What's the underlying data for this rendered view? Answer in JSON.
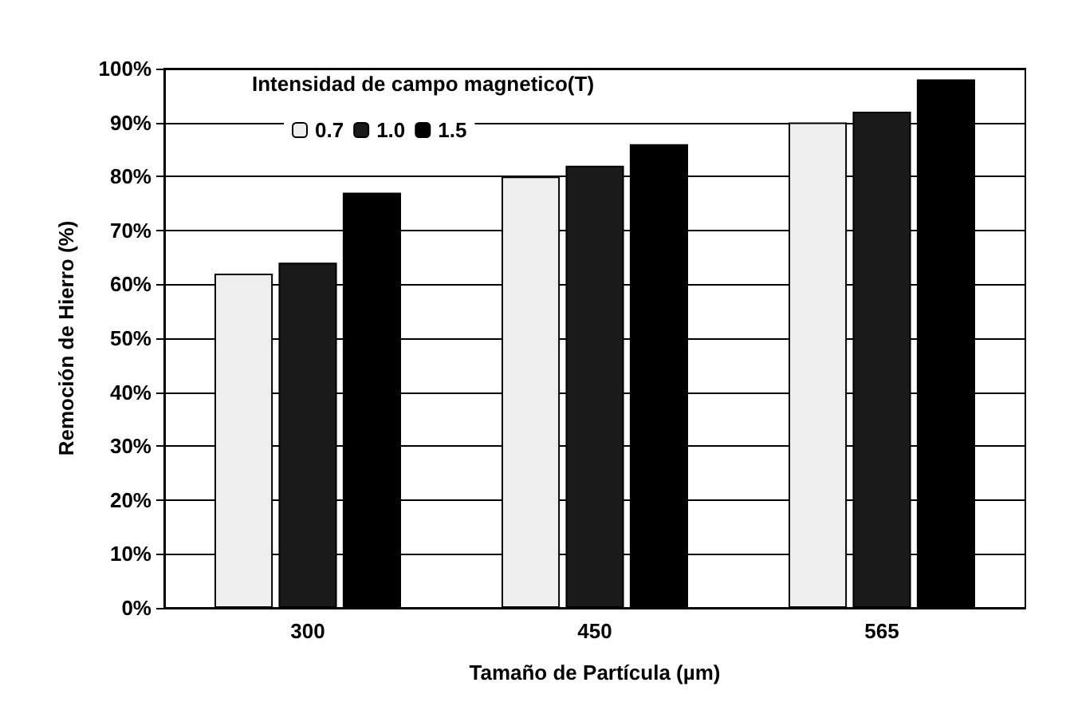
{
  "chart_data": {
    "type": "bar",
    "xlabel": "Tamaño de Partícula (µm)",
    "ylabel": "Remoción de Hierro (%)",
    "legend_title": "Intensidad de campo magnetico(T)",
    "categories": [
      "300",
      "450",
      "565"
    ],
    "series": [
      {
        "name": "0.7",
        "color": "#eeeeee",
        "values": [
          62,
          80,
          90
        ]
      },
      {
        "name": "1.0",
        "color": "#1a1a1a",
        "values": [
          64,
          82,
          92
        ]
      },
      {
        "name": "1.5",
        "color": "#000000",
        "values": [
          77,
          86,
          98
        ]
      }
    ],
    "ylim": [
      0,
      100
    ],
    "yticks": [
      {
        "value": 0,
        "label": "0%"
      },
      {
        "value": 10,
        "label": "10%"
      },
      {
        "value": 20,
        "label": "20%"
      },
      {
        "value": 30,
        "label": "30%"
      },
      {
        "value": 40,
        "label": "40%"
      },
      {
        "value": 50,
        "label": "50%"
      },
      {
        "value": 60,
        "label": "60%"
      },
      {
        "value": 70,
        "label": "70%"
      },
      {
        "value": 80,
        "label": "80%"
      },
      {
        "value": 90,
        "label": "90%"
      },
      {
        "value": 100,
        "label": "100%"
      }
    ],
    "grid": "y",
    "legend": "top left"
  }
}
